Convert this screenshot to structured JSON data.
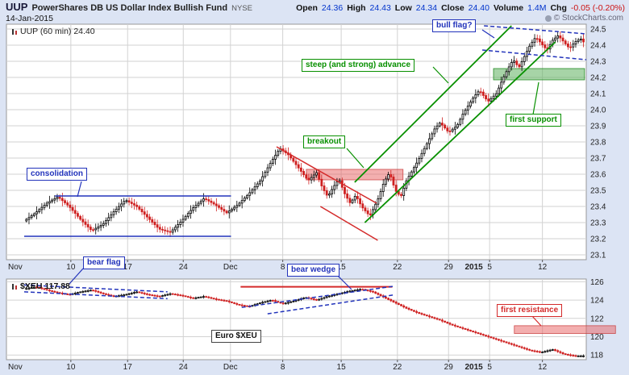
{
  "header": {
    "symbol": "UUP",
    "name": "PowerShares DB US Dollar Index Bullish Fund",
    "exchange": "NYSE",
    "date": "14-Jan-2015",
    "copyright": "© StockCharts.com",
    "quote": {
      "open_label": "Open",
      "open": "24.36",
      "high_label": "High",
      "high": "24.43",
      "low_label": "Low",
      "low": "24.34",
      "close_label": "Close",
      "close": "24.40",
      "volume_label": "Volume",
      "volume": "1.4M",
      "chg_label": "Chg",
      "chg": "-0.05 (-0.20%)"
    }
  },
  "main_chart": {
    "series_label": "UUP (60 min) 24.40"
  },
  "lower_chart": {
    "series_label": "$XEU 117.88"
  },
  "annotations": {
    "consolidation": "consolidation",
    "breakout": "breakout",
    "steep_advance": "steep (and strong) advance",
    "bull_flag": "bull flag?",
    "first_support": "first support",
    "bear_flag": "bear flag",
    "bear_wedge": "bear wedge",
    "euro": "Euro $XEU",
    "first_resistance": "first resistance"
  },
  "colors": {
    "background": "#dce4f4",
    "annotation_blue": "#2233bb",
    "annotation_green": "#089000",
    "annotation_red": "#d42a2a",
    "candle_up": "#000000",
    "candle_down": "#cf2020",
    "support_zone_green": "#5fb05f",
    "resistance_zone_red": "#e76060"
  },
  "chart_data": [
    {
      "type": "candlestick",
      "symbol": "UUP",
      "title": "UUP (60 min)",
      "timeframe": "60 min",
      "last_price": 24.4,
      "ylim": [
        23.1,
        24.5
      ],
      "grid": true,
      "legend_position": "none",
      "y_ticks": [
        "24.5",
        "24.4",
        "24.3",
        "24.2",
        "24.1",
        "24.0",
        "23.9",
        "23.8",
        "23.7",
        "23.6",
        "23.5",
        "23.4",
        "23.3",
        "23.2",
        "23.1"
      ],
      "x_ticks": [
        {
          "label": "Nov",
          "pos": 0.0,
          "grid": false,
          "align": "left"
        },
        {
          "label": "10",
          "pos": 0.083,
          "grid": true
        },
        {
          "label": "17",
          "pos": 0.184,
          "grid": true
        },
        {
          "label": "24",
          "pos": 0.283,
          "grid": true
        },
        {
          "label": "Dec",
          "pos": 0.367,
          "grid": true
        },
        {
          "label": "8",
          "pos": 0.46,
          "grid": true
        },
        {
          "label": "15",
          "pos": 0.564,
          "grid": true
        },
        {
          "label": "22",
          "pos": 0.664,
          "grid": true
        },
        {
          "label": "29",
          "pos": 0.755,
          "grid": true
        },
        {
          "label": "2015",
          "pos": 0.8,
          "grid": false,
          "bold": true
        },
        {
          "label": "5",
          "pos": 0.828,
          "grid": true
        },
        {
          "label": "12",
          "pos": 0.922,
          "grid": true
        }
      ],
      "approx_close_path": [
        [
          0,
          23.31
        ],
        [
          0.02,
          23.36
        ],
        [
          0.04,
          23.42
        ],
        [
          0.06,
          23.46
        ],
        [
          0.08,
          23.4
        ],
        [
          0.1,
          23.32
        ],
        [
          0.12,
          23.25
        ],
        [
          0.14,
          23.29
        ],
        [
          0.16,
          23.37
        ],
        [
          0.18,
          23.44
        ],
        [
          0.2,
          23.4
        ],
        [
          0.22,
          23.33
        ],
        [
          0.24,
          23.26
        ],
        [
          0.26,
          23.24
        ],
        [
          0.28,
          23.31
        ],
        [
          0.3,
          23.39
        ],
        [
          0.32,
          23.45
        ],
        [
          0.34,
          23.41
        ],
        [
          0.36,
          23.36
        ],
        [
          0.38,
          23.41
        ],
        [
          0.4,
          23.48
        ],
        [
          0.42,
          23.56
        ],
        [
          0.44,
          23.68
        ],
        [
          0.455,
          23.76
        ],
        [
          0.47,
          23.72
        ],
        [
          0.49,
          23.63
        ],
        [
          0.505,
          23.56
        ],
        [
          0.52,
          23.61
        ],
        [
          0.53,
          23.52
        ],
        [
          0.54,
          23.46
        ],
        [
          0.55,
          23.52
        ],
        [
          0.56,
          23.57
        ],
        [
          0.57,
          23.48
        ],
        [
          0.58,
          23.42
        ],
        [
          0.59,
          23.47
        ],
        [
          0.6,
          23.4
        ],
        [
          0.615,
          23.34
        ],
        [
          0.63,
          23.45
        ],
        [
          0.64,
          23.55
        ],
        [
          0.65,
          23.61
        ],
        [
          0.66,
          23.5
        ],
        [
          0.67,
          23.46
        ],
        [
          0.68,
          23.56
        ],
        [
          0.7,
          23.68
        ],
        [
          0.715,
          23.78
        ],
        [
          0.73,
          23.88
        ],
        [
          0.74,
          23.92
        ],
        [
          0.755,
          23.86
        ],
        [
          0.77,
          23.9
        ],
        [
          0.78,
          23.97
        ],
        [
          0.8,
          24.08
        ],
        [
          0.81,
          24.12
        ],
        [
          0.825,
          24.05
        ],
        [
          0.84,
          24.1
        ],
        [
          0.85,
          24.18
        ],
        [
          0.86,
          24.25
        ],
        [
          0.87,
          24.31
        ],
        [
          0.88,
          24.26
        ],
        [
          0.89,
          24.33
        ],
        [
          0.9,
          24.4
        ],
        [
          0.91,
          24.45
        ],
        [
          0.92,
          24.41
        ],
        [
          0.93,
          24.37
        ],
        [
          0.94,
          24.43
        ],
        [
          0.95,
          24.46
        ],
        [
          0.96,
          24.42
        ],
        [
          0.97,
          24.38
        ],
        [
          0.98,
          24.42
        ],
        [
          0.99,
          24.44
        ],
        [
          1.0,
          24.4
        ]
      ],
      "overlays": [
        {
          "kind": "line",
          "color": "blue",
          "x1": 0.055,
          "p1": 23.465,
          "x2": 0.368,
          "p2": 23.465,
          "w": 1.5,
          "label": "consolidation upper"
        },
        {
          "kind": "line",
          "color": "blue",
          "x1": 0.0,
          "p1": 23.215,
          "x2": 0.368,
          "p2": 23.215,
          "w": 1.5,
          "label": "consolidation lower"
        },
        {
          "kind": "line",
          "color": "red",
          "x1": 0.449,
          "p1": 23.77,
          "x2": 0.627,
          "p2": 23.42,
          "w": 1.5,
          "label": "falling channel upper"
        },
        {
          "kind": "line",
          "color": "red",
          "x1": 0.527,
          "p1": 23.4,
          "x2": 0.629,
          "p2": 23.19,
          "w": 1.5,
          "label": "falling channel lower"
        },
        {
          "kind": "line",
          "color": "green",
          "x1": 0.588,
          "p1": 23.55,
          "x2": 0.867,
          "p2": 24.52,
          "w": 1.8,
          "label": "advance channel upper"
        },
        {
          "kind": "line",
          "color": "green",
          "x1": 0.606,
          "p1": 23.3,
          "x2": 0.945,
          "p2": 24.42,
          "w": 1.8,
          "label": "advance channel lower"
        },
        {
          "kind": "zone",
          "color": "red",
          "x1": 0.502,
          "x2": 0.674,
          "p1": 23.63,
          "p2": 23.565,
          "label": "breakout zone 23.57-23.63"
        },
        {
          "kind": "zone",
          "color": "green",
          "x1": 0.835,
          "x2": 0.997,
          "p1": 24.255,
          "p2": 24.185,
          "label": "first support 24.19-24.25"
        },
        {
          "kind": "dash",
          "color": "blue",
          "x1": 0.818,
          "p1": 24.52,
          "x2": 1.0,
          "p2": 24.47,
          "w": 1.5,
          "label": "bull flag upper"
        },
        {
          "kind": "dash",
          "color": "blue",
          "x1": 0.815,
          "p1": 24.37,
          "x2": 1.0,
          "p2": 24.31,
          "w": 1.5,
          "label": "bull flag lower"
        }
      ]
    },
    {
      "type": "candlestick",
      "symbol": "$XEU",
      "title": "Euro $XEU",
      "last_price": 117.88,
      "ylim": [
        118,
        126
      ],
      "grid": true,
      "legend_position": "none",
      "y_ticks": [
        "126",
        "124",
        "122",
        "120",
        "118"
      ],
      "x_ticks": [
        {
          "label": "Nov",
          "pos": 0.0,
          "grid": false,
          "align": "left"
        },
        {
          "label": "10",
          "pos": 0.083,
          "grid": true
        },
        {
          "label": "17",
          "pos": 0.184,
          "grid": true
        },
        {
          "label": "24",
          "pos": 0.283,
          "grid": true
        },
        {
          "label": "Dec",
          "pos": 0.367,
          "grid": true
        },
        {
          "label": "8",
          "pos": 0.46,
          "grid": true
        },
        {
          "label": "15",
          "pos": 0.564,
          "grid": true
        },
        {
          "label": "22",
          "pos": 0.664,
          "grid": true
        },
        {
          "label": "29",
          "pos": 0.755,
          "grid": true
        },
        {
          "label": "2015",
          "pos": 0.8,
          "grid": false,
          "bold": true
        },
        {
          "label": "5",
          "pos": 0.828,
          "grid": true
        },
        {
          "label": "12",
          "pos": 0.922,
          "grid": true
        }
      ],
      "approx_close_path": [
        [
          0,
          125.2
        ],
        [
          0.02,
          125.45
        ],
        [
          0.04,
          125.1
        ],
        [
          0.06,
          124.8
        ],
        [
          0.08,
          124.6
        ],
        [
          0.1,
          124.9
        ],
        [
          0.12,
          125.1
        ],
        [
          0.14,
          124.7
        ],
        [
          0.16,
          124.4
        ],
        [
          0.18,
          124.6
        ],
        [
          0.2,
          124.9
        ],
        [
          0.22,
          124.6
        ],
        [
          0.24,
          124.4
        ],
        [
          0.26,
          124.7
        ],
        [
          0.28,
          124.5
        ],
        [
          0.3,
          124.2
        ],
        [
          0.32,
          124.4
        ],
        [
          0.34,
          124.1
        ],
        [
          0.36,
          123.9
        ],
        [
          0.38,
          123.5
        ],
        [
          0.4,
          123.3
        ],
        [
          0.42,
          123.7
        ],
        [
          0.44,
          124.0
        ],
        [
          0.46,
          123.6
        ],
        [
          0.48,
          123.9
        ],
        [
          0.5,
          124.3
        ],
        [
          0.52,
          124.0
        ],
        [
          0.54,
          124.4
        ],
        [
          0.56,
          124.7
        ],
        [
          0.58,
          125.0
        ],
        [
          0.6,
          125.2
        ],
        [
          0.62,
          124.9
        ],
        [
          0.64,
          124.3
        ],
        [
          0.66,
          123.7
        ],
        [
          0.68,
          123.1
        ],
        [
          0.7,
          122.6
        ],
        [
          0.72,
          122.2
        ],
        [
          0.74,
          121.8
        ],
        [
          0.76,
          121.3
        ],
        [
          0.78,
          120.9
        ],
        [
          0.8,
          120.5
        ],
        [
          0.82,
          120.1
        ],
        [
          0.84,
          119.7
        ],
        [
          0.86,
          119.3
        ],
        [
          0.88,
          118.9
        ],
        [
          0.9,
          118.5
        ],
        [
          0.92,
          118.3
        ],
        [
          0.94,
          118.6
        ],
        [
          0.96,
          118.1
        ],
        [
          0.98,
          117.9
        ],
        [
          1.0,
          117.9
        ]
      ],
      "overlays": [
        {
          "kind": "dash",
          "color": "blue",
          "x1": 0.0,
          "p1": 125.65,
          "x2": 0.255,
          "p2": 124.9,
          "w": 1.5,
          "label": "bear flag upper"
        },
        {
          "kind": "dash",
          "color": "blue",
          "x1": 0.0,
          "p1": 124.9,
          "x2": 0.255,
          "p2": 124.15,
          "w": 1.5,
          "label": "bear flag lower"
        },
        {
          "kind": "line",
          "color": "red",
          "x1": 0.385,
          "p1": 125.45,
          "x2": 0.655,
          "p2": 125.45,
          "w": 2,
          "label": "resistance 125.45"
        },
        {
          "kind": "dash",
          "color": "blue",
          "x1": 0.387,
          "p1": 123.2,
          "x2": 0.656,
          "p2": 125.5,
          "w": 1.5,
          "label": "bear wedge upper"
        },
        {
          "kind": "dash",
          "color": "blue",
          "x1": 0.433,
          "p1": 122.5,
          "x2": 0.656,
          "p2": 124.55,
          "w": 1.5,
          "label": "bear wedge lower"
        },
        {
          "kind": "zone",
          "color": "red",
          "x1": 0.872,
          "x2": 1.052,
          "p1": 121.2,
          "p2": 120.35,
          "label": "first resistance 120.35-121.2"
        }
      ]
    }
  ]
}
